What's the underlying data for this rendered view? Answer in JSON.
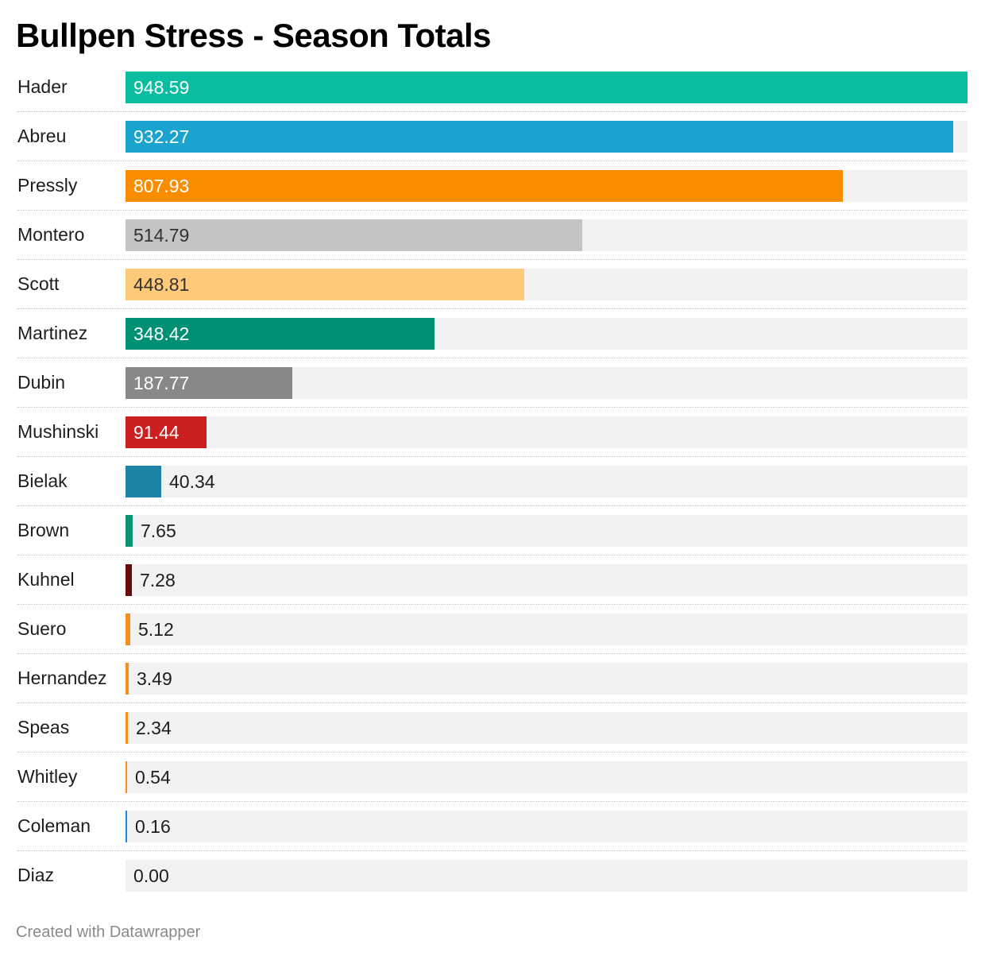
{
  "title": "Bullpen Stress - Season Totals",
  "footer": "Created with Datawrapper",
  "chart_data": {
    "type": "bar",
    "orientation": "horizontal",
    "title": "Bullpen Stress - Season Totals",
    "xlim": [
      0,
      948.59
    ],
    "grid": false,
    "categories": [
      "Hader",
      "Abreu",
      "Pressly",
      "Montero",
      "Scott",
      "Martinez",
      "Dubin",
      "Mushinski",
      "Bielak",
      "Brown",
      "Kuhnel",
      "Suero",
      "Hernandez",
      "Speas",
      "Whitley",
      "Coleman",
      "Diaz"
    ],
    "values": [
      948.59,
      932.27,
      807.93,
      514.79,
      448.81,
      348.42,
      187.77,
      91.44,
      40.34,
      7.65,
      7.28,
      5.12,
      3.49,
      2.34,
      0.54,
      0.16,
      0.0
    ],
    "labels": [
      "948.59",
      "932.27",
      "807.93",
      "514.79",
      "448.81",
      "348.42",
      "187.77",
      "91.44",
      "40.34",
      "7.65",
      "7.28",
      "5.12",
      "3.49",
      "2.34",
      "0.54",
      "0.16",
      "0.00"
    ],
    "colors": [
      "#0abda0",
      "#1aa3cf",
      "#fa8c00",
      "#c4c4c4",
      "#fdca7a",
      "#009074",
      "#888888",
      "#cc1f1f",
      "#1e83a6",
      "#0e9172",
      "#6b0a0a",
      "#f68d1f",
      "#f68d1f",
      "#f68d1f",
      "#f68d1f",
      "#1e88e5",
      "#f2f2f2"
    ],
    "dark_text": [
      false,
      false,
      false,
      true,
      true,
      false,
      false,
      false,
      false,
      false,
      false,
      false,
      false,
      false,
      false,
      false,
      false
    ]
  }
}
